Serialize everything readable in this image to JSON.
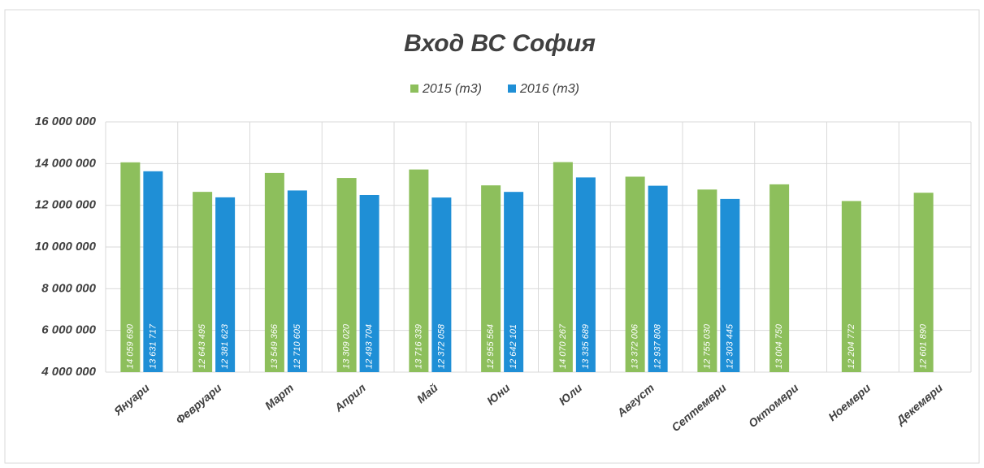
{
  "chart_data": {
    "type": "bar",
    "title": "Вход ВС София",
    "categories": [
      "Януари",
      "Февруари",
      "Март",
      "Април",
      "Май",
      "Юни",
      "Юли",
      "Август",
      "Септември",
      "Октомври",
      "Ноември",
      "Декември"
    ],
    "series": [
      {
        "name": "2015 (m3)",
        "color": "#8dbf5c",
        "values": [
          14059690,
          12643495,
          13549366,
          13309020,
          13716339,
          12955564,
          14070267,
          13372006,
          12755030,
          13004750,
          12204772,
          12601890
        ],
        "value_labels": [
          "14 059 690",
          "12 643 495",
          "13 549 366",
          "13 309 020",
          "13 716 339",
          "12 955 564",
          "14 070 267",
          "13 372 006",
          "12 755 030",
          "13 004 750",
          "12 204 772",
          "12 601 890"
        ]
      },
      {
        "name": "2016 (m3)",
        "color": "#1f8fd6",
        "values": [
          13631717,
          12381623,
          12710605,
          12493704,
          12372058,
          12642101,
          13335689,
          12937808,
          12303445,
          null,
          null,
          null
        ],
        "value_labels": [
          "13 631 717",
          "12 381 623",
          "12 710 605",
          "12 493 704",
          "12 372 058",
          "12 642 101",
          "13 335 689",
          "12 937 808",
          "12 303 445",
          null,
          null,
          null
        ]
      }
    ],
    "ylim": [
      4000000,
      16000000
    ],
    "yticks": [
      {
        "value": 4000000,
        "label": "4 000 000"
      },
      {
        "value": 6000000,
        "label": "6 000 000"
      },
      {
        "value": 8000000,
        "label": "8 000 000"
      },
      {
        "value": 10000000,
        "label": "10 000 000"
      },
      {
        "value": 12000000,
        "label": "12 000 000"
      },
      {
        "value": 14000000,
        "label": "14 000 000"
      },
      {
        "value": 16000000,
        "label": "16 000 000"
      }
    ],
    "grid": true,
    "legend": "top"
  }
}
